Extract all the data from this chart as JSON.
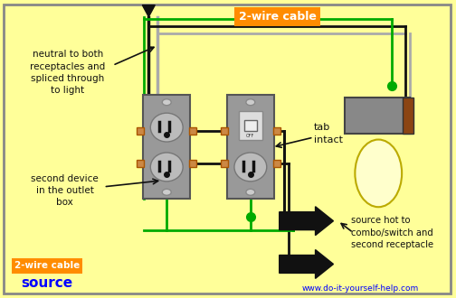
{
  "bg_color": "#FFFF99",
  "border_color": "#888888",
  "title_text": "2-wire cable",
  "title_color": "#FF8C00",
  "title_text2": "2-wire cable",
  "source_label": "source",
  "website": "www.do-it-yourself-help.com",
  "wire_black": "#111111",
  "wire_white": "#AAAAAA",
  "wire_green": "#00AA00",
  "wire_orange": "#CC6600",
  "outlet_gray": "#999999",
  "label1": "neutral to both\nreceptacles and\nspliced through\nto light",
  "label2": "second device\nin the outlet\nbox",
  "label3": "tab\nintact",
  "label4": "source hot to\ncombo/switch and\nsecond receptacle"
}
